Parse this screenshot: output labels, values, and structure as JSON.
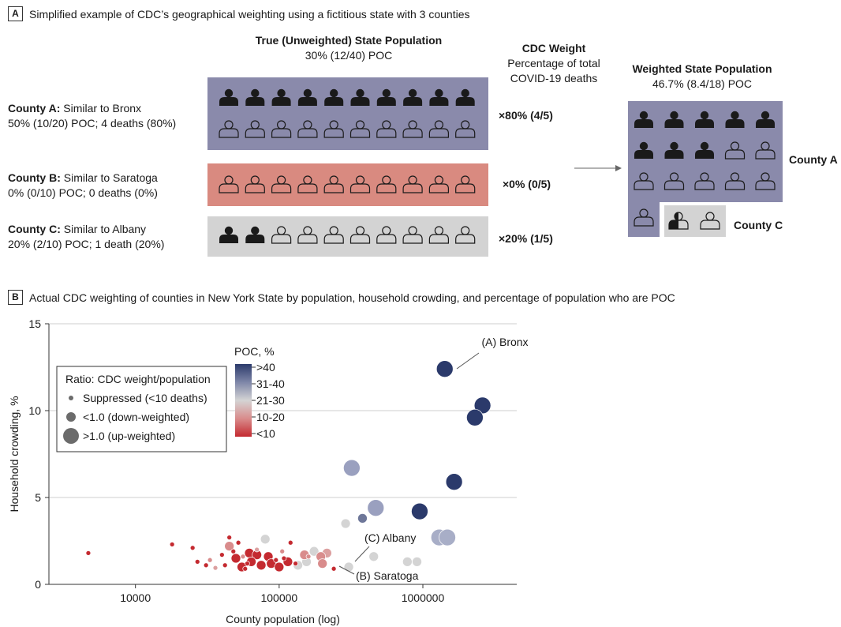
{
  "panel_a": {
    "letter": "A",
    "caption": "Simplified example of CDC’s geographical weighting using a fictitious state with 3 counties",
    "true_pop": {
      "title": "True (Unweighted) State Population",
      "value": "30% (12/40) POC"
    },
    "cdc_weight": {
      "title": "CDC Weight",
      "line1": "Percentage of total",
      "line2": "COVID-19 deaths"
    },
    "weighted_pop": {
      "title": "Weighted State Population",
      "value": "46.7% (8.4/18) POC"
    },
    "counties": [
      {
        "name": "County A:",
        "similar": "Similar to Bronx",
        "detail": "50% (10/20) POC; 4 deaths (80%)",
        "weight": "×80% (4/5)",
        "color": "#8a8aab",
        "total": 20,
        "poc": 10
      },
      {
        "name": "County B:",
        "similar": "Similar to Saratoga",
        "detail": "0% (0/10) POC; 0 deaths (0%)",
        "weight": "×0% (0/5)",
        "color": "#d98a80",
        "total": 10,
        "poc": 0
      },
      {
        "name": "County C:",
        "similar": "Similar to Albany",
        "detail": "20% (2/10) POC; 1 death (20%)",
        "weight": "×20% (1/5)",
        "color": "#d3d3d3",
        "total": 10,
        "poc": 2
      }
    ],
    "label_county_a": "County A",
    "label_county_c": "County C"
  },
  "panel_b": {
    "letter": "B",
    "caption": "Actual CDC weighting of counties in New York State by population, household crowding, and percentage of population who are POC"
  },
  "chart_data": {
    "type": "scatter",
    "xlabel": "County population (log)",
    "ylabel": "Household crowding, %",
    "xscale": "log",
    "xlim": [
      2500,
      4500000
    ],
    "ylim": [
      0,
      15
    ],
    "xticks": [
      {
        "value": 10000,
        "label": "10000"
      },
      {
        "value": 100000,
        "label": "100000"
      },
      {
        "value": 1000000,
        "label": "1000000"
      }
    ],
    "yticks": [
      {
        "value": 0,
        "label": "0"
      },
      {
        "value": 5,
        "label": "5"
      },
      {
        "value": 10,
        "label": "10"
      },
      {
        "value": 15,
        "label": "15"
      }
    ],
    "grid": true,
    "size_legend": {
      "title": "Ratio: CDC weight/population",
      "items": [
        {
          "label": "Suppressed (<10 deaths)",
          "size": "small"
        },
        {
          "label": "<1.0 (down-weighted)",
          "size": "medium"
        },
        {
          "label": ">1.0 (up-weighted)",
          "size": "large"
        }
      ]
    },
    "color_legend": {
      "title": "POC, %",
      "bins": [
        ">40",
        "31-40",
        "21-30",
        "10-20",
        "<10"
      ],
      "colors": [
        "#2b3a6b",
        "#7e86a8",
        "#d4d4d4",
        "#d98c8c",
        "#c42a30"
      ]
    },
    "annotations": [
      {
        "text": "(A) Bronx",
        "x": 1420000,
        "y": 12.4
      },
      {
        "text": "(C) Albany",
        "x": 305000,
        "y": 1.6
      },
      {
        "text": "(B) Saratoga",
        "x": 230000,
        "y": 0.9
      }
    ],
    "points": [
      {
        "x": 1420000,
        "y": 12.4,
        "size": "large",
        "color": "#2b3a6b"
      },
      {
        "x": 2600000,
        "y": 10.3,
        "size": "large",
        "color": "#2b3a6b"
      },
      {
        "x": 2300000,
        "y": 9.6,
        "size": "large",
        "color": "#2b3a6b"
      },
      {
        "x": 1650000,
        "y": 5.9,
        "size": "large",
        "color": "#2b3a6b"
      },
      {
        "x": 950000,
        "y": 4.2,
        "size": "large",
        "color": "#2b3a6b"
      },
      {
        "x": 320000,
        "y": 6.7,
        "size": "large",
        "color": "#9aa0bf"
      },
      {
        "x": 470000,
        "y": 4.4,
        "size": "large",
        "color": "#9aa0bf"
      },
      {
        "x": 380000,
        "y": 3.8,
        "size": "medium",
        "color": "#6e7799"
      },
      {
        "x": 1300000,
        "y": 2.7,
        "size": "large",
        "color": "#a8aec7"
      },
      {
        "x": 1480000,
        "y": 2.7,
        "size": "large",
        "color": "#a8aec7"
      },
      {
        "x": 290000,
        "y": 3.5,
        "size": "medium",
        "color": "#d4d4d4"
      },
      {
        "x": 455000,
        "y": 1.6,
        "size": "medium",
        "color": "#d4d4d4"
      },
      {
        "x": 305000,
        "y": 1.0,
        "size": "medium",
        "color": "#d4d4d4"
      },
      {
        "x": 780000,
        "y": 1.3,
        "size": "medium",
        "color": "#d4d4d4"
      },
      {
        "x": 910000,
        "y": 1.3,
        "size": "medium",
        "color": "#d4d4d4"
      },
      {
        "x": 80000,
        "y": 2.6,
        "size": "medium",
        "color": "#d4d4d4"
      },
      {
        "x": 175000,
        "y": 1.9,
        "size": "medium",
        "color": "#d4d4d4"
      },
      {
        "x": 155000,
        "y": 1.3,
        "size": "medium",
        "color": "#d4d4d4"
      },
      {
        "x": 135000,
        "y": 1.1,
        "size": "medium",
        "color": "#d4d4d4"
      },
      {
        "x": 215000,
        "y": 1.8,
        "size": "medium",
        "color": "#dca0a0"
      },
      {
        "x": 195000,
        "y": 1.6,
        "size": "medium",
        "color": "#d98c8c"
      },
      {
        "x": 200000,
        "y": 1.2,
        "size": "medium",
        "color": "#d98c8c"
      },
      {
        "x": 150000,
        "y": 1.7,
        "size": "medium",
        "color": "#d98c8c"
      },
      {
        "x": 105000,
        "y": 1.9,
        "size": "small",
        "color": "#d98c8c"
      },
      {
        "x": 45000,
        "y": 2.2,
        "size": "medium",
        "color": "#d98c8c"
      },
      {
        "x": 56000,
        "y": 1.6,
        "size": "small",
        "color": "#d98c8c"
      },
      {
        "x": 62000,
        "y": 1.8,
        "size": "medium",
        "color": "#c42a30"
      },
      {
        "x": 70000,
        "y": 1.7,
        "size": "medium",
        "color": "#c42a30"
      },
      {
        "x": 84000,
        "y": 1.6,
        "size": "medium",
        "color": "#c42a30"
      },
      {
        "x": 50000,
        "y": 1.5,
        "size": "medium",
        "color": "#c42a30"
      },
      {
        "x": 64000,
        "y": 1.3,
        "size": "medium",
        "color": "#c42a30"
      },
      {
        "x": 75000,
        "y": 1.1,
        "size": "medium",
        "color": "#c42a30"
      },
      {
        "x": 55000,
        "y": 1.0,
        "size": "medium",
        "color": "#c42a30"
      },
      {
        "x": 88000,
        "y": 1.2,
        "size": "medium",
        "color": "#c42a30"
      },
      {
        "x": 100000,
        "y": 1.0,
        "size": "medium",
        "color": "#c42a30"
      },
      {
        "x": 115000,
        "y": 1.3,
        "size": "medium",
        "color": "#c42a30"
      },
      {
        "x": 45000,
        "y": 2.7,
        "size": "small",
        "color": "#c42a30"
      },
      {
        "x": 52000,
        "y": 2.4,
        "size": "small",
        "color": "#c42a30"
      },
      {
        "x": 18000,
        "y": 2.3,
        "size": "small",
        "color": "#c42a30"
      },
      {
        "x": 25000,
        "y": 2.1,
        "size": "small",
        "color": "#c42a30"
      },
      {
        "x": 4700,
        "y": 1.8,
        "size": "small",
        "color": "#c42a30"
      },
      {
        "x": 40000,
        "y": 1.7,
        "size": "small",
        "color": "#c42a30"
      },
      {
        "x": 33000,
        "y": 1.4,
        "size": "small",
        "color": "#d98c8c"
      },
      {
        "x": 27000,
        "y": 1.3,
        "size": "small",
        "color": "#c42a30"
      },
      {
        "x": 31000,
        "y": 1.1,
        "size": "small",
        "color": "#c42a30"
      },
      {
        "x": 36000,
        "y": 0.95,
        "size": "small",
        "color": "#dca0a0"
      },
      {
        "x": 42000,
        "y": 1.1,
        "size": "small",
        "color": "#c42a30"
      },
      {
        "x": 58000,
        "y": 0.9,
        "size": "small",
        "color": "#c42a30"
      },
      {
        "x": 95000,
        "y": 1.4,
        "size": "small",
        "color": "#c42a30"
      },
      {
        "x": 120000,
        "y": 2.4,
        "size": "small",
        "color": "#c42a30"
      },
      {
        "x": 108000,
        "y": 1.5,
        "size": "small",
        "color": "#c42a30"
      },
      {
        "x": 130000,
        "y": 1.2,
        "size": "small",
        "color": "#c42a30"
      },
      {
        "x": 160000,
        "y": 1.6,
        "size": "small",
        "color": "#d98c8c"
      },
      {
        "x": 240000,
        "y": 0.9,
        "size": "small",
        "color": "#c42a30"
      },
      {
        "x": 70000,
        "y": 2.0,
        "size": "small",
        "color": "#dca0a0"
      },
      {
        "x": 48000,
        "y": 1.9,
        "size": "small",
        "color": "#c42a30"
      },
      {
        "x": 60000,
        "y": 1.2,
        "size": "small",
        "color": "#c42a30"
      }
    ]
  }
}
